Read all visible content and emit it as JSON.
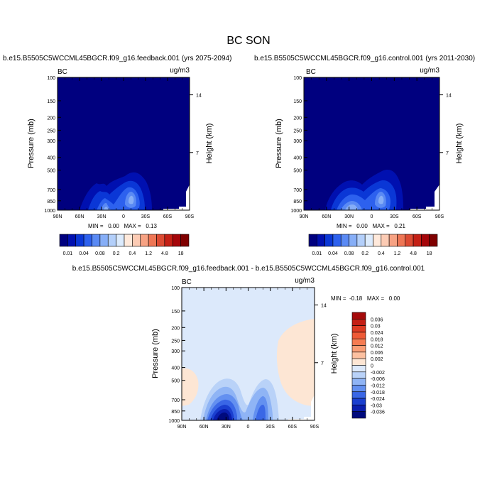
{
  "title": "BC SON",
  "chart_data": [
    {
      "type": "heatmap",
      "id": "feedback",
      "title": "b.e15.B5505C5WCCML45BGCR.f09_g16.feedback.001 (yrs 2075-2094)",
      "left_label": "BC",
      "right_label": "ug/m3",
      "ylabel": "Pressure (mb)",
      "ylabel_right": "Height (km)",
      "x_ticks": [
        "90N",
        "60N",
        "30N",
        "0",
        "30S",
        "60S",
        "90S"
      ],
      "y_ticks": [
        "100",
        "150",
        "200",
        "250",
        "300",
        "400",
        "500",
        "700",
        "850",
        "1000"
      ],
      "height_ticks": [
        "14",
        "7"
      ],
      "stats": "MIN =   0.00   MAX =   0.13",
      "min": 0.0,
      "max": 0.13,
      "colorbar": {
        "labels": [
          "0.01",
          "0.04",
          "0.08",
          "0.2",
          "0.4",
          "1.2",
          "4.8",
          "18"
        ],
        "colors": [
          "#00007f",
          "#0010b0",
          "#0a37d6",
          "#2d61ee",
          "#5a8af4",
          "#86aef7",
          "#b3cffa",
          "#dcebfd",
          "#ffe9db",
          "#fccbb4",
          "#f7a283",
          "#ee7655",
          "#dc4a32",
          "#c42015",
          "#a5060a",
          "#7f0000"
        ]
      }
    },
    {
      "type": "heatmap",
      "id": "control",
      "title": "b.e15.B5505C5WCCML45BGCR.f09_g16.control.001 (yrs 2011-2030)",
      "left_label": "BC",
      "right_label": "ug/m3",
      "ylabel": "Pressure (mb)",
      "ylabel_right": "Height (km)",
      "x_ticks": [
        "90N",
        "60N",
        "30N",
        "0",
        "30S",
        "60S",
        "90S"
      ],
      "y_ticks": [
        "100",
        "150",
        "200",
        "250",
        "300",
        "400",
        "500",
        "700",
        "850",
        "1000"
      ],
      "height_ticks": [
        "14",
        "7"
      ],
      "stats": "MIN =   0.00   MAX =   0.21",
      "min": 0.0,
      "max": 0.21,
      "colorbar": {
        "labels": [
          "0.01",
          "0.04",
          "0.08",
          "0.2",
          "0.4",
          "1.2",
          "4.8",
          "18"
        ],
        "colors": [
          "#00007f",
          "#0010b0",
          "#0a37d6",
          "#2d61ee",
          "#5a8af4",
          "#86aef7",
          "#b3cffa",
          "#dcebfd",
          "#ffe9db",
          "#fccbb4",
          "#f7a283",
          "#ee7655",
          "#dc4a32",
          "#c42015",
          "#a5060a",
          "#7f0000"
        ]
      }
    },
    {
      "type": "heatmap",
      "id": "difference",
      "title": "b.e15.B5505C5WCCML45BGCR.f09_g16.feedback.001 - b.e15.B5505C5WCCML45BGCR.f09_g16.control.001",
      "left_label": "BC",
      "right_label": "ug/m3",
      "ylabel": "Pressure (mb)",
      "ylabel_right": "Height (km)",
      "x_ticks": [
        "90N",
        "60N",
        "30N",
        "0",
        "30S",
        "60S",
        "90S"
      ],
      "y_ticks": [
        "100",
        "150",
        "200",
        "250",
        "300",
        "400",
        "500",
        "700",
        "850",
        "1000"
      ],
      "height_ticks": [
        "14",
        "7"
      ],
      "stats": "MIN =  -0.18   MAX =   0.00",
      "min": -0.18,
      "max": 0.0,
      "colorbar": {
        "labels": [
          "0.036",
          "0.03",
          "0.024",
          "0.018",
          "0.012",
          "0.006",
          "0.002",
          "0",
          "-0.002",
          "-0.006",
          "-0.012",
          "-0.018",
          "-0.024",
          "-0.03",
          "-0.036"
        ],
        "colors": [
          "#a50a0a",
          "#c41f15",
          "#dd3b23",
          "#ee5a36",
          "#f67c52",
          "#fa9e76",
          "#fcc0a0",
          "#fde6d4",
          "#dce9fb",
          "#b9d2f8",
          "#8fb4f5",
          "#6390f0",
          "#3a67e6",
          "#1a3fcf",
          "#0a1eae",
          "#000a7d"
        ]
      }
    }
  ]
}
